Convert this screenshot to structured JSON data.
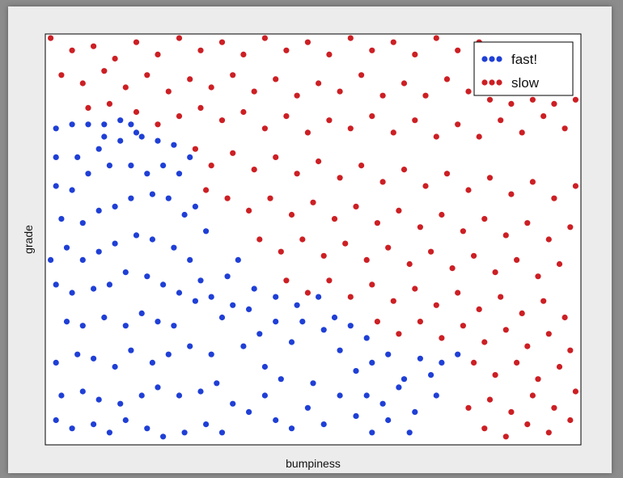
{
  "chart_data": {
    "type": "scatter",
    "title": "",
    "xlabel": "bumpiness",
    "ylabel": "grade",
    "xlim": [
      0,
      1
    ],
    "ylim": [
      0,
      1
    ],
    "grid": false,
    "ticks_shown": false,
    "legend": {
      "placement": "top-right"
    },
    "colors": {
      "fast": "#1f3fd6",
      "slow": "#cc1f24"
    },
    "series": [
      {
        "name": "fast!",
        "color": "#1f3fd6",
        "points": [
          [
            0.02,
            0.77
          ],
          [
            0.05,
            0.78
          ],
          [
            0.08,
            0.78
          ],
          [
            0.11,
            0.78
          ],
          [
            0.14,
            0.79
          ],
          [
            0.16,
            0.78
          ],
          [
            0.17,
            0.76
          ],
          [
            0.11,
            0.75
          ],
          [
            0.02,
            0.7
          ],
          [
            0.06,
            0.7
          ],
          [
            0.1,
            0.72
          ],
          [
            0.14,
            0.74
          ],
          [
            0.18,
            0.75
          ],
          [
            0.21,
            0.74
          ],
          [
            0.24,
            0.73
          ],
          [
            0.27,
            0.7
          ],
          [
            0.02,
            0.63
          ],
          [
            0.05,
            0.62
          ],
          [
            0.08,
            0.66
          ],
          [
            0.12,
            0.68
          ],
          [
            0.16,
            0.68
          ],
          [
            0.19,
            0.66
          ],
          [
            0.22,
            0.68
          ],
          [
            0.25,
            0.66
          ],
          [
            0.03,
            0.55
          ],
          [
            0.07,
            0.54
          ],
          [
            0.1,
            0.57
          ],
          [
            0.13,
            0.58
          ],
          [
            0.16,
            0.6
          ],
          [
            0.2,
            0.61
          ],
          [
            0.23,
            0.6
          ],
          [
            0.26,
            0.56
          ],
          [
            0.01,
            0.45
          ],
          [
            0.04,
            0.48
          ],
          [
            0.07,
            0.45
          ],
          [
            0.1,
            0.47
          ],
          [
            0.13,
            0.49
          ],
          [
            0.17,
            0.51
          ],
          [
            0.2,
            0.5
          ],
          [
            0.24,
            0.48
          ],
          [
            0.28,
            0.58
          ],
          [
            0.27,
            0.45
          ],
          [
            0.3,
            0.52
          ],
          [
            0.29,
            0.4
          ],
          [
            0.02,
            0.39
          ],
          [
            0.05,
            0.37
          ],
          [
            0.09,
            0.38
          ],
          [
            0.12,
            0.39
          ],
          [
            0.15,
            0.42
          ],
          [
            0.19,
            0.41
          ],
          [
            0.22,
            0.39
          ],
          [
            0.25,
            0.37
          ],
          [
            0.28,
            0.35
          ],
          [
            0.31,
            0.36
          ],
          [
            0.35,
            0.34
          ],
          [
            0.38,
            0.33
          ],
          [
            0.04,
            0.3
          ],
          [
            0.07,
            0.29
          ],
          [
            0.11,
            0.31
          ],
          [
            0.15,
            0.29
          ],
          [
            0.18,
            0.32
          ],
          [
            0.21,
            0.3
          ],
          [
            0.24,
            0.29
          ],
          [
            0.27,
            0.24
          ],
          [
            0.02,
            0.2
          ],
          [
            0.06,
            0.22
          ],
          [
            0.09,
            0.21
          ],
          [
            0.13,
            0.19
          ],
          [
            0.16,
            0.23
          ],
          [
            0.2,
            0.2
          ],
          [
            0.23,
            0.22
          ],
          [
            0.31,
            0.22
          ],
          [
            0.03,
            0.12
          ],
          [
            0.07,
            0.13
          ],
          [
            0.1,
            0.11
          ],
          [
            0.14,
            0.1
          ],
          [
            0.18,
            0.12
          ],
          [
            0.21,
            0.14
          ],
          [
            0.25,
            0.12
          ],
          [
            0.29,
            0.13
          ],
          [
            0.02,
            0.06
          ],
          [
            0.05,
            0.04
          ],
          [
            0.09,
            0.05
          ],
          [
            0.12,
            0.03
          ],
          [
            0.15,
            0.06
          ],
          [
            0.19,
            0.04
          ],
          [
            0.22,
            0.02
          ],
          [
            0.26,
            0.03
          ],
          [
            0.3,
            0.05
          ],
          [
            0.33,
            0.03
          ],
          [
            0.35,
            0.1
          ],
          [
            0.38,
            0.08
          ],
          [
            0.41,
            0.12
          ],
          [
            0.43,
            0.06
          ],
          [
            0.46,
            0.04
          ],
          [
            0.49,
            0.09
          ],
          [
            0.52,
            0.05
          ],
          [
            0.55,
            0.12
          ],
          [
            0.58,
            0.07
          ],
          [
            0.61,
            0.03
          ],
          [
            0.63,
            0.1
          ],
          [
            0.66,
            0.14
          ],
          [
            0.69,
            0.08
          ],
          [
            0.72,
            0.17
          ],
          [
            0.74,
            0.2
          ],
          [
            0.77,
            0.22
          ],
          [
            0.4,
            0.27
          ],
          [
            0.43,
            0.3
          ],
          [
            0.46,
            0.25
          ],
          [
            0.48,
            0.3
          ],
          [
            0.52,
            0.28
          ],
          [
            0.55,
            0.23
          ],
          [
            0.58,
            0.18
          ],
          [
            0.61,
            0.2
          ],
          [
            0.64,
            0.22
          ],
          [
            0.67,
            0.16
          ],
          [
            0.7,
            0.21
          ],
          [
            0.73,
            0.12
          ],
          [
            0.39,
            0.38
          ],
          [
            0.43,
            0.36
          ],
          [
            0.47,
            0.34
          ],
          [
            0.51,
            0.36
          ],
          [
            0.54,
            0.31
          ],
          [
            0.57,
            0.29
          ],
          [
            0.6,
            0.26
          ],
          [
            0.34,
            0.41
          ],
          [
            0.36,
            0.45
          ],
          [
            0.33,
            0.31
          ],
          [
            0.37,
            0.24
          ],
          [
            0.41,
            0.19
          ],
          [
            0.44,
            0.16
          ],
          [
            0.5,
            0.15
          ],
          [
            0.6,
            0.12
          ],
          [
            0.64,
            0.06
          ],
          [
            0.68,
            0.03
          ],
          [
            0.32,
            0.15
          ]
        ]
      },
      {
        "name": "slow",
        "color": "#cc1f24",
        "points": [
          [
            0.01,
            0.99
          ],
          [
            0.05,
            0.96
          ],
          [
            0.09,
            0.97
          ],
          [
            0.13,
            0.94
          ],
          [
            0.17,
            0.98
          ],
          [
            0.21,
            0.95
          ],
          [
            0.25,
            0.99
          ],
          [
            0.29,
            0.96
          ],
          [
            0.33,
            0.98
          ],
          [
            0.37,
            0.95
          ],
          [
            0.41,
            0.99
          ],
          [
            0.45,
            0.96
          ],
          [
            0.49,
            0.98
          ],
          [
            0.53,
            0.95
          ],
          [
            0.57,
            0.99
          ],
          [
            0.61,
            0.96
          ],
          [
            0.65,
            0.98
          ],
          [
            0.69,
            0.95
          ],
          [
            0.73,
            0.99
          ],
          [
            0.77,
            0.96
          ],
          [
            0.81,
            0.98
          ],
          [
            0.85,
            0.95
          ],
          [
            0.89,
            0.97
          ],
          [
            0.93,
            0.94
          ],
          [
            0.03,
            0.9
          ],
          [
            0.07,
            0.88
          ],
          [
            0.11,
            0.91
          ],
          [
            0.15,
            0.87
          ],
          [
            0.19,
            0.9
          ],
          [
            0.23,
            0.86
          ],
          [
            0.27,
            0.89
          ],
          [
            0.31,
            0.87
          ],
          [
            0.35,
            0.9
          ],
          [
            0.39,
            0.86
          ],
          [
            0.43,
            0.89
          ],
          [
            0.47,
            0.85
          ],
          [
            0.51,
            0.88
          ],
          [
            0.55,
            0.86
          ],
          [
            0.59,
            0.9
          ],
          [
            0.63,
            0.85
          ],
          [
            0.67,
            0.88
          ],
          [
            0.71,
            0.85
          ],
          [
            0.75,
            0.89
          ],
          [
            0.79,
            0.86
          ],
          [
            0.83,
            0.84
          ],
          [
            0.87,
            0.83
          ],
          [
            0.91,
            0.84
          ],
          [
            0.95,
            0.83
          ],
          [
            0.99,
            0.84
          ],
          [
            0.08,
            0.82
          ],
          [
            0.12,
            0.83
          ],
          [
            0.17,
            0.81
          ],
          [
            0.21,
            0.78
          ],
          [
            0.25,
            0.8
          ],
          [
            0.29,
            0.82
          ],
          [
            0.33,
            0.79
          ],
          [
            0.37,
            0.81
          ],
          [
            0.41,
            0.77
          ],
          [
            0.45,
            0.8
          ],
          [
            0.49,
            0.76
          ],
          [
            0.53,
            0.79
          ],
          [
            0.57,
            0.77
          ],
          [
            0.61,
            0.8
          ],
          [
            0.65,
            0.76
          ],
          [
            0.69,
            0.79
          ],
          [
            0.73,
            0.75
          ],
          [
            0.77,
            0.78
          ],
          [
            0.81,
            0.75
          ],
          [
            0.85,
            0.79
          ],
          [
            0.89,
            0.76
          ],
          [
            0.93,
            0.8
          ],
          [
            0.97,
            0.77
          ],
          [
            0.28,
            0.72
          ],
          [
            0.31,
            0.68
          ],
          [
            0.35,
            0.71
          ],
          [
            0.39,
            0.67
          ],
          [
            0.43,
            0.7
          ],
          [
            0.47,
            0.66
          ],
          [
            0.51,
            0.69
          ],
          [
            0.55,
            0.65
          ],
          [
            0.59,
            0.68
          ],
          [
            0.63,
            0.64
          ],
          [
            0.67,
            0.67
          ],
          [
            0.71,
            0.63
          ],
          [
            0.75,
            0.66
          ],
          [
            0.79,
            0.62
          ],
          [
            0.83,
            0.65
          ],
          [
            0.87,
            0.61
          ],
          [
            0.91,
            0.64
          ],
          [
            0.95,
            0.6
          ],
          [
            0.99,
            0.63
          ],
          [
            0.3,
            0.62
          ],
          [
            0.34,
            0.6
          ],
          [
            0.38,
            0.57
          ],
          [
            0.42,
            0.6
          ],
          [
            0.46,
            0.56
          ],
          [
            0.5,
            0.59
          ],
          [
            0.54,
            0.55
          ],
          [
            0.58,
            0.58
          ],
          [
            0.62,
            0.54
          ],
          [
            0.66,
            0.57
          ],
          [
            0.7,
            0.53
          ],
          [
            0.74,
            0.56
          ],
          [
            0.78,
            0.52
          ],
          [
            0.82,
            0.55
          ],
          [
            0.86,
            0.51
          ],
          [
            0.9,
            0.54
          ],
          [
            0.94,
            0.5
          ],
          [
            0.98,
            0.53
          ],
          [
            0.4,
            0.5
          ],
          [
            0.44,
            0.47
          ],
          [
            0.48,
            0.5
          ],
          [
            0.52,
            0.46
          ],
          [
            0.56,
            0.49
          ],
          [
            0.6,
            0.45
          ],
          [
            0.64,
            0.48
          ],
          [
            0.68,
            0.44
          ],
          [
            0.72,
            0.47
          ],
          [
            0.76,
            0.43
          ],
          [
            0.8,
            0.46
          ],
          [
            0.84,
            0.42
          ],
          [
            0.88,
            0.45
          ],
          [
            0.92,
            0.41
          ],
          [
            0.96,
            0.44
          ],
          [
            0.45,
            0.4
          ],
          [
            0.49,
            0.37
          ],
          [
            0.53,
            0.4
          ],
          [
            0.57,
            0.36
          ],
          [
            0.61,
            0.39
          ],
          [
            0.65,
            0.35
          ],
          [
            0.69,
            0.38
          ],
          [
            0.73,
            0.34
          ],
          [
            0.77,
            0.37
          ],
          [
            0.81,
            0.33
          ],
          [
            0.85,
            0.36
          ],
          [
            0.89,
            0.32
          ],
          [
            0.93,
            0.35
          ],
          [
            0.97,
            0.31
          ],
          [
            0.62,
            0.3
          ],
          [
            0.66,
            0.27
          ],
          [
            0.7,
            0.3
          ],
          [
            0.74,
            0.26
          ],
          [
            0.78,
            0.29
          ],
          [
            0.82,
            0.25
          ],
          [
            0.86,
            0.28
          ],
          [
            0.9,
            0.24
          ],
          [
            0.94,
            0.27
          ],
          [
            0.98,
            0.23
          ],
          [
            0.8,
            0.2
          ],
          [
            0.84,
            0.17
          ],
          [
            0.88,
            0.2
          ],
          [
            0.92,
            0.16
          ],
          [
            0.96,
            0.19
          ],
          [
            0.83,
            0.11
          ],
          [
            0.87,
            0.08
          ],
          [
            0.91,
            0.12
          ],
          [
            0.95,
            0.09
          ],
          [
            0.99,
            0.13
          ],
          [
            0.82,
            0.04
          ],
          [
            0.86,
            0.02
          ],
          [
            0.9,
            0.05
          ],
          [
            0.94,
            0.03
          ],
          [
            0.98,
            0.06
          ],
          [
            0.79,
            0.09
          ]
        ]
      }
    ]
  }
}
